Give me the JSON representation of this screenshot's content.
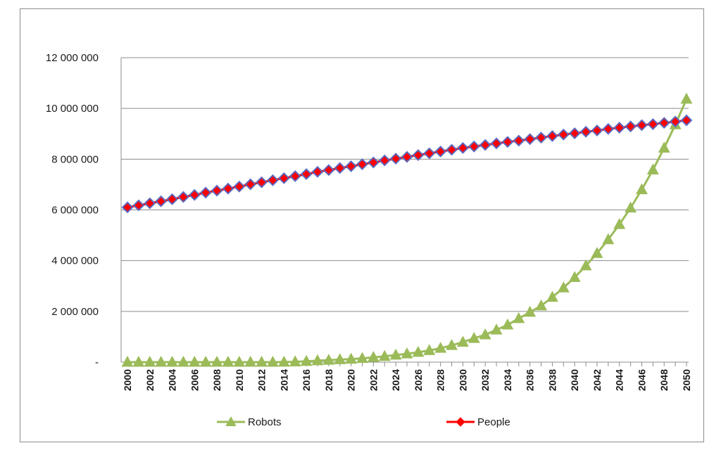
{
  "chart_data": {
    "type": "line",
    "title": "",
    "xlabel": "",
    "ylabel": "",
    "x": [
      2000,
      2001,
      2002,
      2003,
      2004,
      2005,
      2006,
      2007,
      2008,
      2009,
      2010,
      2011,
      2012,
      2013,
      2014,
      2015,
      2016,
      2017,
      2018,
      2019,
      2020,
      2021,
      2022,
      2023,
      2024,
      2025,
      2026,
      2027,
      2028,
      2029,
      2030,
      2031,
      2032,
      2033,
      2034,
      2035,
      2036,
      2037,
      2038,
      2039,
      2040,
      2041,
      2042,
      2043,
      2044,
      2045,
      2046,
      2047,
      2048,
      2049,
      2050
    ],
    "x_tick_labels": [
      "2000",
      "2002",
      "2004",
      "2006",
      "2008",
      "2010",
      "2012",
      "2014",
      "2016",
      "2018",
      "2020",
      "2022",
      "2024",
      "2026",
      "2028",
      "2030",
      "2032",
      "2034",
      "2036",
      "2038",
      "2040",
      "2042",
      "2044",
      "2046",
      "2048",
      "2050"
    ],
    "ylim": [
      0,
      12000000
    ],
    "y_tick_labels": [
      "-",
      "2 000 000",
      "4 000 000",
      "6 000 000",
      "8 000 000",
      "10 000 000",
      "12 000 000"
    ],
    "y_ticks": [
      0,
      2000000,
      4000000,
      6000000,
      8000000,
      10000000,
      12000000
    ],
    "grid": "horizontal",
    "legend_position": "bottom",
    "series": [
      {
        "name": "Robots",
        "color": "#9bbb59",
        "marker": "triangle",
        "values": [
          0,
          0,
          0,
          0,
          0,
          0,
          0,
          0,
          0,
          0,
          0,
          0,
          0,
          0,
          5000,
          15000,
          35000,
          60000,
          80000,
          100000,
          120000,
          150000,
          190000,
          230000,
          280000,
          330000,
          390000,
          460000,
          550000,
          660000,
          790000,
          940000,
          1080000,
          1270000,
          1470000,
          1720000,
          1970000,
          2220000,
          2560000,
          2930000,
          3340000,
          3800000,
          4290000,
          4830000,
          5430000,
          6080000,
          6800000,
          7580000,
          8440000,
          9360000,
          10370000
        ]
      },
      {
        "name": "People",
        "color": "#ff0000",
        "marker_edge": "#5b6abf",
        "marker": "diamond",
        "values": [
          6100000,
          6180000,
          6260000,
          6340000,
          6420000,
          6510000,
          6590000,
          6680000,
          6760000,
          6840000,
          6920000,
          7010000,
          7090000,
          7170000,
          7250000,
          7330000,
          7410000,
          7500000,
          7570000,
          7650000,
          7720000,
          7800000,
          7870000,
          7950000,
          8020000,
          8090000,
          8160000,
          8230000,
          8300000,
          8370000,
          8440000,
          8500000,
          8560000,
          8620000,
          8680000,
          8730000,
          8790000,
          8850000,
          8910000,
          8970000,
          9020000,
          9080000,
          9130000,
          9190000,
          9240000,
          9290000,
          9340000,
          9380000,
          9430000,
          9480000,
          9530000
        ]
      }
    ]
  }
}
